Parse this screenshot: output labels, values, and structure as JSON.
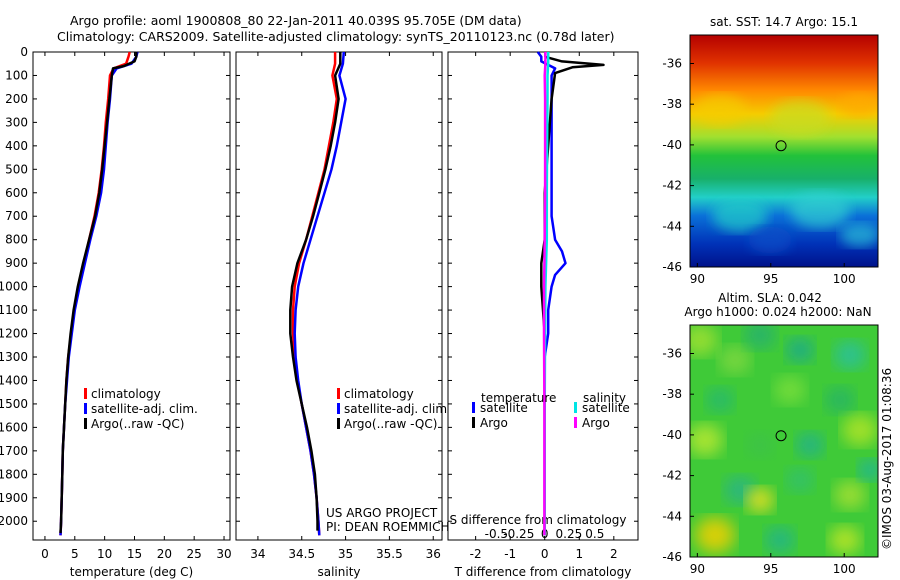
{
  "titles": {
    "line1": "Argo profile: aoml 1900808_80 22-Jan-2011 40.039S 95.705E (DM data)",
    "line2": "Climatology: CARS2009. Satellite-adjusted climatology: synTS_20110123.nc (0.78d later)"
  },
  "colors": {
    "climatology": "#ff0000",
    "satellite": "#0000ff",
    "argo": "#000000",
    "salinity_satellite": "#00e5e5",
    "salinity_argo": "#ff00ff"
  },
  "chart_data": [
    {
      "type": "line",
      "xlabel": "temperature (deg C)",
      "ylabel": "",
      "xlim": [
        -2,
        31
      ],
      "ylim": [
        2080,
        0
      ],
      "xticks": [
        0,
        5,
        10,
        15,
        20,
        25,
        30
      ],
      "yticks": [
        0,
        100,
        200,
        300,
        400,
        500,
        600,
        700,
        800,
        900,
        1000,
        1100,
        1200,
        1300,
        1400,
        1500,
        1600,
        1700,
        1800,
        1900,
        2000
      ],
      "legend": [
        "climatology",
        "satellite-adj. clim.",
        "Argo(..raw -QC)"
      ],
      "legend_position": "lower-right",
      "series": [
        {
          "name": "climatology",
          "color": "#ff0000",
          "points": [
            [
              14.2,
              0
            ],
            [
              14.0,
              20
            ],
            [
              13.6,
              50
            ],
            [
              11.5,
              70
            ],
            [
              10.9,
              100
            ],
            [
              10.6,
              200
            ],
            [
              10.2,
              300
            ],
            [
              9.9,
              400
            ],
            [
              9.5,
              500
            ],
            [
              9.0,
              600
            ],
            [
              8.3,
              700
            ],
            [
              7.4,
              800
            ],
            [
              6.5,
              900
            ],
            [
              5.6,
              1000
            ],
            [
              4.9,
              1100
            ],
            [
              4.4,
              1200
            ],
            [
              3.9,
              1300
            ],
            [
              3.6,
              1400
            ],
            [
              3.4,
              1500
            ],
            [
              3.2,
              1600
            ],
            [
              3.0,
              1700
            ],
            [
              2.9,
              1800
            ],
            [
              2.8,
              1900
            ],
            [
              2.7,
              2000
            ],
            [
              2.6,
              2060
            ]
          ]
        },
        {
          "name": "satellite-adj. clim.",
          "color": "#0000ff",
          "points": [
            [
              15.5,
              0
            ],
            [
              15.3,
              20
            ],
            [
              14.5,
              50
            ],
            [
              12.0,
              70
            ],
            [
              11.2,
              100
            ],
            [
              10.9,
              200
            ],
            [
              10.5,
              300
            ],
            [
              10.2,
              400
            ],
            [
              9.9,
              500
            ],
            [
              9.4,
              600
            ],
            [
              8.6,
              700
            ],
            [
              7.6,
              800
            ],
            [
              6.7,
              900
            ],
            [
              5.8,
              1000
            ],
            [
              5.0,
              1100
            ],
            [
              4.5,
              1200
            ],
            [
              4.0,
              1300
            ],
            [
              3.7,
              1400
            ],
            [
              3.4,
              1500
            ],
            [
              3.2,
              1600
            ],
            [
              3.0,
              1700
            ],
            [
              2.9,
              1800
            ],
            [
              2.8,
              1900
            ],
            [
              2.7,
              2000
            ],
            [
              2.6,
              2060
            ]
          ]
        },
        {
          "name": "Argo(..raw -QC)",
          "color": "#000000",
          "points": [
            [
              15.3,
              0
            ],
            [
              15.3,
              20
            ],
            [
              15.0,
              40
            ],
            [
              13.2,
              60
            ],
            [
              11.4,
              70
            ],
            [
              11.2,
              100
            ],
            [
              10.8,
              200
            ],
            [
              10.4,
              300
            ],
            [
              10.0,
              400
            ],
            [
              9.6,
              500
            ],
            [
              9.1,
              600
            ],
            [
              8.4,
              700
            ],
            [
              7.4,
              800
            ],
            [
              6.4,
              900
            ],
            [
              5.5,
              1000
            ],
            [
              4.8,
              1100
            ],
            [
              4.3,
              1200
            ],
            [
              3.9,
              1300
            ],
            [
              3.6,
              1400
            ],
            [
              3.4,
              1500
            ],
            [
              3.2,
              1600
            ],
            [
              3.0,
              1700
            ],
            [
              2.9,
              1800
            ],
            [
              2.8,
              1900
            ],
            [
              2.7,
              2000
            ],
            [
              2.6,
              2050
            ]
          ]
        }
      ]
    },
    {
      "type": "line",
      "xlabel": "salinity",
      "ylabel": "",
      "xlim": [
        33.75,
        36.1
      ],
      "ylim": [
        2080,
        0
      ],
      "xticks": [
        34,
        34.5,
        35,
        35.5,
        36
      ],
      "legend": [
        "climatology",
        "satellite-adj. clim.",
        "Argo(..raw -QC)"
      ],
      "legend_position": "lower-right",
      "annotations": [
        "US ARGO PROJECT",
        "PI: DEAN ROEMMICH"
      ],
      "series": [
        {
          "name": "climatology",
          "color": "#ff0000",
          "points": [
            [
              34.88,
              0
            ],
            [
              34.88,
              50
            ],
            [
              34.85,
              100
            ],
            [
              34.9,
              200
            ],
            [
              34.86,
              300
            ],
            [
              34.81,
              400
            ],
            [
              34.76,
              500
            ],
            [
              34.69,
              600
            ],
            [
              34.62,
              700
            ],
            [
              34.55,
              800
            ],
            [
              34.47,
              900
            ],
            [
              34.42,
              1000
            ],
            [
              34.4,
              1100
            ],
            [
              34.4,
              1200
            ],
            [
              34.42,
              1300
            ],
            [
              34.45,
              1400
            ],
            [
              34.5,
              1500
            ],
            [
              34.55,
              1600
            ],
            [
              34.6,
              1700
            ],
            [
              34.64,
              1800
            ],
            [
              34.67,
              1900
            ],
            [
              34.69,
              2000
            ],
            [
              34.7,
              2060
            ]
          ]
        },
        {
          "name": "satellite-adj. clim.",
          "color": "#0000ff",
          "points": [
            [
              34.98,
              0
            ],
            [
              34.97,
              50
            ],
            [
              34.93,
              100
            ],
            [
              35.0,
              200
            ],
            [
              34.95,
              300
            ],
            [
              34.9,
              400
            ],
            [
              34.84,
              500
            ],
            [
              34.76,
              600
            ],
            [
              34.68,
              700
            ],
            [
              34.6,
              800
            ],
            [
              34.52,
              900
            ],
            [
              34.46,
              1000
            ],
            [
              34.43,
              1100
            ],
            [
              34.42,
              1200
            ],
            [
              34.43,
              1300
            ],
            [
              34.46,
              1400
            ],
            [
              34.5,
              1500
            ],
            [
              34.55,
              1600
            ],
            [
              34.6,
              1700
            ],
            [
              34.64,
              1800
            ],
            [
              34.67,
              1900
            ],
            [
              34.69,
              2000
            ],
            [
              34.7,
              2060
            ]
          ]
        },
        {
          "name": "Argo(..raw -QC)",
          "color": "#000000",
          "points": [
            [
              34.94,
              0
            ],
            [
              34.94,
              50
            ],
            [
              34.88,
              100
            ],
            [
              34.92,
              200
            ],
            [
              34.88,
              300
            ],
            [
              34.83,
              400
            ],
            [
              34.77,
              500
            ],
            [
              34.7,
              600
            ],
            [
              34.63,
              700
            ],
            [
              34.55,
              800
            ],
            [
              34.45,
              900
            ],
            [
              34.39,
              1000
            ],
            [
              34.37,
              1100
            ],
            [
              34.37,
              1200
            ],
            [
              34.4,
              1300
            ],
            [
              34.44,
              1400
            ],
            [
              34.5,
              1500
            ],
            [
              34.56,
              1600
            ],
            [
              34.61,
              1700
            ],
            [
              34.65,
              1800
            ],
            [
              34.67,
              1900
            ],
            [
              34.68,
              2000
            ],
            [
              34.68,
              2040
            ]
          ]
        }
      ]
    },
    {
      "type": "line",
      "xlabel": "T difference from climatology",
      "secondary_xlabel": "S difference from climatology",
      "ylabel": "",
      "xlim": [
        -2.8,
        2.7
      ],
      "ylim": [
        2080,
        0
      ],
      "xticks": [
        -2,
        -1,
        0,
        1,
        2
      ],
      "secondary_xticks": [
        "-0.5",
        "-0.25",
        "0",
        "0.25",
        "0.5"
      ],
      "legend_headers": [
        "temperature",
        "salinity"
      ],
      "legend": [
        "satellite",
        "Argo",
        "satellite",
        "Argo"
      ],
      "legend_position": "lower",
      "series": [
        {
          "name": "temperature satellite",
          "color": "#0000ff",
          "points": [
            [
              -0.2,
              0
            ],
            [
              -0.1,
              20
            ],
            [
              -0.1,
              40
            ],
            [
              0.3,
              70
            ],
            [
              0.2,
              100
            ],
            [
              0.2,
              200
            ],
            [
              0.2,
              300
            ],
            [
              0.2,
              400
            ],
            [
              0.2,
              500
            ],
            [
              0.2,
              600
            ],
            [
              0.2,
              700
            ],
            [
              0.3,
              800
            ],
            [
              0.5,
              850
            ],
            [
              0.6,
              900
            ],
            [
              0.3,
              950
            ],
            [
              0.2,
              1000
            ],
            [
              0.1,
              1100
            ],
            [
              0.1,
              1200
            ],
            [
              0.0,
              1300
            ],
            [
              0.0,
              1500
            ],
            [
              0.0,
              1800
            ],
            [
              0.0,
              2060
            ]
          ]
        },
        {
          "name": "temperature Argo",
          "color": "#000000",
          "points": [
            [
              0.0,
              20
            ],
            [
              0.5,
              40
            ],
            [
              1.7,
              55
            ],
            [
              0.8,
              65
            ],
            [
              0.3,
              90
            ],
            [
              0.2,
              200
            ],
            [
              0.1,
              400
            ],
            [
              0.0,
              600
            ],
            [
              0.0,
              800
            ],
            [
              -0.1,
              900
            ],
            [
              -0.1,
              1000
            ],
            [
              0.0,
              1200
            ],
            [
              0.0,
              1500
            ],
            [
              0.0,
              2060
            ]
          ]
        },
        {
          "name": "salinity satellite",
          "color": "#00e5e5",
          "points": [
            [
              0.1,
              0
            ],
            [
              0.1,
              50
            ],
            [
              0.08,
              100
            ],
            [
              0.08,
              200
            ],
            [
              0.07,
              400
            ],
            [
              0.06,
              600
            ],
            [
              0.06,
              800
            ],
            [
              0.04,
              900
            ],
            [
              0.02,
              1000
            ],
            [
              0.01,
              1200
            ],
            [
              0.0,
              1500
            ],
            [
              0.0,
              2060
            ]
          ]
        },
        {
          "name": "salinity Argo",
          "color": "#ff00ff",
          "points": [
            [
              0.02,
              0
            ],
            [
              0.02,
              50
            ],
            [
              0.0,
              100
            ],
            [
              0.01,
              200
            ],
            [
              0.01,
              400
            ],
            [
              0.01,
              600
            ],
            [
              0.0,
              800
            ],
            [
              -0.01,
              900
            ],
            [
              -0.02,
              1000
            ],
            [
              -0.02,
              1200
            ],
            [
              -0.01,
              1500
            ],
            [
              -0.01,
              2060
            ]
          ]
        }
      ]
    },
    {
      "type": "heatmap",
      "title": "sat. SST: 14.7 Argo: 15.1",
      "xlim": [
        89.5,
        102.3
      ],
      "ylim": [
        -46,
        -34.6
      ],
      "xticks": [
        90,
        95,
        100
      ],
      "yticks": [
        -46,
        -44,
        -42,
        -40,
        -38,
        -36
      ],
      "marker": {
        "lon": 95.7,
        "lat": -40.04
      }
    },
    {
      "type": "heatmap",
      "title": "Altim. SLA: 0.042",
      "subtitle": "Argo h1000: 0.024 h2000: NaN",
      "xlim": [
        89.5,
        102.3
      ],
      "ylim": [
        -46,
        -34.6
      ],
      "xticks": [
        90,
        95,
        100
      ],
      "yticks": [
        -46,
        -44,
        -42,
        -40,
        -38,
        -36
      ],
      "marker": {
        "lon": 95.7,
        "lat": -40.04
      },
      "side_label": "©IMOS 03-Aug-2017 01:08:36"
    }
  ]
}
